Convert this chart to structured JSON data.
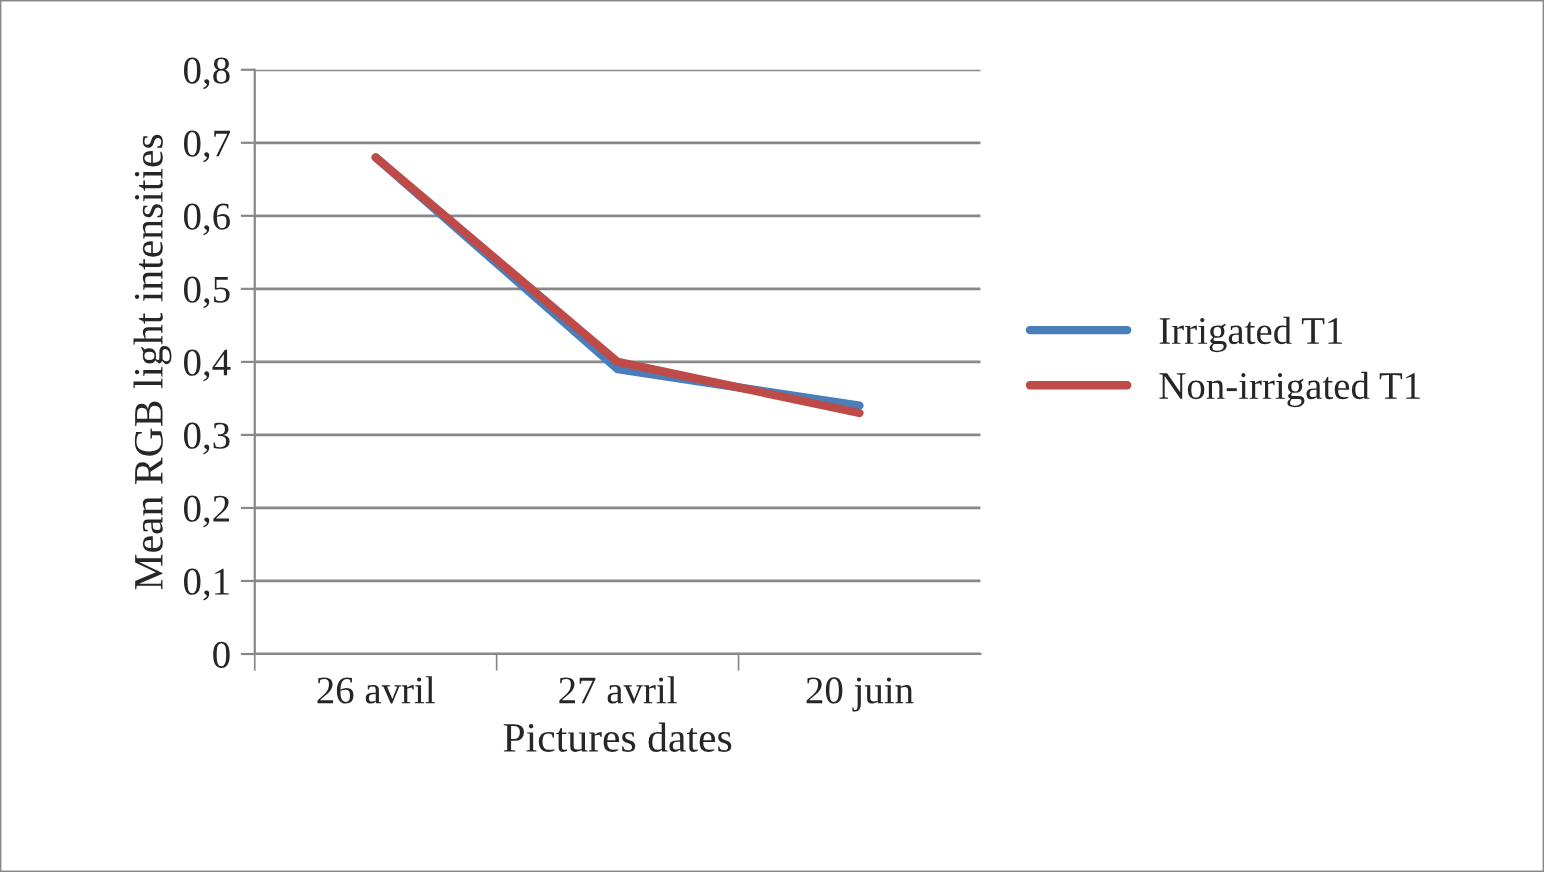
{
  "chart_data": {
    "type": "line",
    "xlabel": "Pictures dates",
    "ylabel": "Mean RGB light intensities",
    "categories": [
      "26 avril",
      "27 avril",
      "20 juin"
    ],
    "series": [
      {
        "name": "Irrigated T1",
        "color": "#4a7ebb",
        "values": [
          0.68,
          0.39,
          0.34
        ]
      },
      {
        "name": "Non-irrigated T1",
        "color": "#be4b48",
        "values": [
          0.68,
          0.4,
          0.33
        ]
      }
    ],
    "ylim": [
      0,
      0.8
    ],
    "yticks": [
      {
        "value": 0,
        "label": "0"
      },
      {
        "value": 0.1,
        "label": "0,1"
      },
      {
        "value": 0.2,
        "label": "0,2"
      },
      {
        "value": 0.3,
        "label": "0,3"
      },
      {
        "value": 0.4,
        "label": "0,4"
      },
      {
        "value": 0.5,
        "label": "0,5"
      },
      {
        "value": 0.6,
        "label": "0,6"
      },
      {
        "value": 0.7,
        "label": "0,7"
      },
      {
        "value": 0.8,
        "label": "0,8"
      }
    ],
    "grid": "y",
    "legend": "right",
    "marker": "none",
    "line_style": "solid"
  }
}
